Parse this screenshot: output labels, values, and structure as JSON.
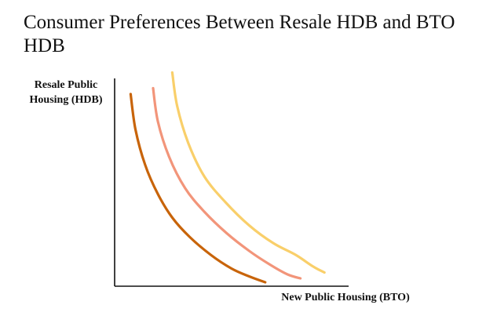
{
  "chart_data": {
    "type": "line",
    "title_lines": [
      "Consumer Preferences Between Resale HDB and BTO",
      "HDB"
    ],
    "ylabel_lines": [
      "Resale Public",
      "Housing (HDB)"
    ],
    "xlabel": "New Public Housing  (BTO)",
    "grid": false,
    "legend": "none",
    "series": [
      {
        "color": "#c8640a",
        "x": [
          1.0,
          1.3,
          1.9,
          2.7,
          3.6,
          4.7,
          6.0,
          7.3,
          8.4,
          9.4
        ],
        "y": [
          9.8,
          8.0,
          6.2,
          4.7,
          3.5,
          2.5,
          1.6,
          0.9,
          0.5,
          0.2
        ]
      },
      {
        "color": "#f2957a",
        "x": [
          2.4,
          2.7,
          3.4,
          4.4,
          5.6,
          7.0,
          8.4,
          9.7,
          10.8,
          11.6
        ],
        "y": [
          10.1,
          8.4,
          6.6,
          5.0,
          3.8,
          2.7,
          1.8,
          1.1,
          0.6,
          0.4
        ]
      },
      {
        "color": "#f9cf6a",
        "x": [
          3.6,
          3.9,
          4.6,
          5.6,
          6.9,
          8.4,
          9.9,
          11.3,
          12.4,
          13.1
        ],
        "y": [
          10.9,
          9.2,
          7.3,
          5.6,
          4.3,
          3.1,
          2.2,
          1.6,
          1.0,
          0.7
        ]
      }
    ]
  }
}
